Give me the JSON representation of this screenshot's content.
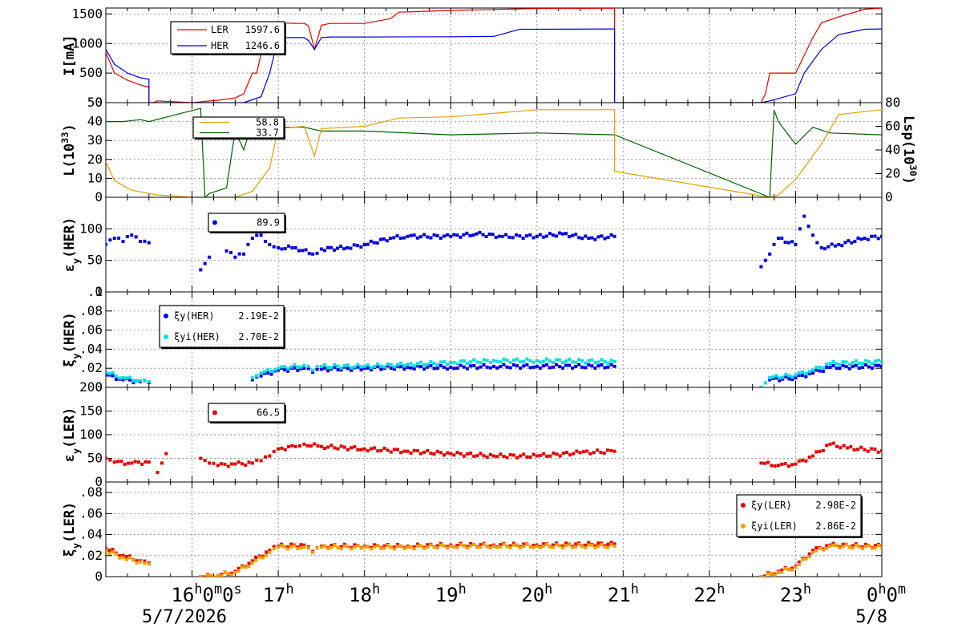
{
  "time_axis": {
    "labels": [
      {
        "h": 16,
        "text": "16",
        "sup": "h",
        "extra": "0",
        "extra_sup": "m",
        "extra2": "0",
        "extra2_sup": "s"
      },
      {
        "h": 17,
        "text": "17",
        "sup": "h"
      },
      {
        "h": 18,
        "text": "18",
        "sup": "h"
      },
      {
        "h": 19,
        "text": "19",
        "sup": "h"
      },
      {
        "h": 20,
        "text": "20",
        "sup": "h"
      },
      {
        "h": 21,
        "text": "21",
        "sup": "h"
      },
      {
        "h": 22,
        "text": "22",
        "sup": "h"
      },
      {
        "h": 23,
        "text": "23",
        "sup": "h"
      },
      {
        "h": 24,
        "text": "0",
        "sup": "h",
        "extra": "0",
        "extra_sup": "m"
      }
    ],
    "date_start": "5/7/2026",
    "date_end": "5/8"
  },
  "chart_data": [
    {
      "type": "line",
      "ylabel": "I[mA]",
      "ylim": [
        0,
        1600
      ],
      "yticks": [
        0,
        500,
        1000,
        1500
      ],
      "grid": true,
      "legend": [
        {
          "name": "LER",
          "value": "1597.6",
          "color": "#e00000"
        },
        {
          "name": "HER",
          "value": "1246.6",
          "color": "#0000e0"
        }
      ],
      "series": [
        {
          "name": "LER",
          "color": "#e00000",
          "x": [
            15.0,
            15.1,
            15.25,
            15.4,
            15.48,
            15.5,
            15.5,
            15.55,
            15.6,
            16.0,
            16.3,
            16.5,
            16.6,
            16.7,
            16.75,
            16.85,
            17.0,
            17.2,
            17.3,
            17.35,
            17.42,
            17.5,
            17.6,
            18.0,
            18.3,
            18.4,
            19.0,
            19.5,
            20.0,
            20.9,
            20.9,
            21.5,
            22.0,
            22.6,
            22.65,
            22.7,
            23.0,
            23.05,
            23.2,
            23.3,
            23.5,
            23.8,
            24.0
          ],
          "y": [
            850,
            500,
            380,
            300,
            270,
            270,
            0,
            0,
            30,
            0,
            40,
            80,
            150,
            500,
            500,
            1150,
            1350,
            1340,
            1340,
            1300,
            900,
            1310,
            1340,
            1340,
            1420,
            1530,
            1560,
            1575,
            1590,
            1597,
            0,
            0,
            0,
            0,
            150,
            500,
            500,
            650,
            1100,
            1350,
            1450,
            1580,
            1597
          ]
        },
        {
          "name": "HER",
          "color": "#0000e0",
          "x": [
            15.0,
            15.1,
            15.25,
            15.4,
            15.48,
            15.5,
            15.5,
            16.0,
            16.6,
            16.8,
            16.9,
            17.0,
            17.3,
            17.35,
            17.42,
            17.5,
            17.6,
            18.0,
            19.0,
            19.5,
            19.8,
            20.0,
            20.9,
            20.9,
            22.0,
            22.6,
            22.7,
            23.0,
            23.1,
            23.3,
            23.5,
            23.8,
            24.0
          ],
          "y": [
            900,
            650,
            500,
            420,
            400,
            400,
            0,
            0,
            0,
            100,
            500,
            1100,
            1100,
            1050,
            900,
            1100,
            1110,
            1110,
            1115,
            1120,
            1240,
            1240,
            1246,
            0,
            0,
            0,
            30,
            150,
            500,
            900,
            1150,
            1240,
            1246
          ]
        }
      ]
    },
    {
      "type": "line",
      "ylabel": "L(10",
      "ylabel_sup": "33",
      "ylabel_end": ")",
      "ylim": [
        0,
        50
      ],
      "yticks": [
        0,
        10,
        20,
        30,
        40,
        50
      ],
      "y2label": "Lsp(10",
      "y2label_sup": "30",
      "y2label_end": ")",
      "y2lim": [
        0,
        80
      ],
      "y2ticks": [
        0,
        20,
        40,
        60,
        80
      ],
      "grid": true,
      "legend": [
        {
          "name": "",
          "value": "58.8",
          "color": "#e0a000"
        },
        {
          "name": "",
          "value": "33.7",
          "color": "#006000"
        }
      ],
      "series": [
        {
          "name": "L",
          "color": "#006000",
          "x": [
            15.0,
            15.2,
            15.4,
            15.5,
            16.1,
            16.15,
            16.2,
            16.4,
            16.5,
            16.6,
            16.7,
            16.8,
            16.9,
            17.0,
            17.3,
            17.5,
            18.0,
            19.0,
            20.0,
            20.9,
            22.7,
            22.75,
            22.8,
            23.0,
            23.2,
            23.4,
            24.0
          ],
          "y": [
            40,
            40,
            41,
            40,
            47,
            0,
            2,
            5,
            35,
            25,
            40,
            42,
            38,
            37,
            37,
            35,
            35,
            33,
            34,
            33,
            0,
            46,
            40,
            28,
            37,
            34,
            33
          ]
        },
        {
          "name": "Lsp",
          "color": "#e0a000",
          "axis": "y2",
          "x": [
            15.0,
            15.1,
            15.3,
            15.6,
            16.0,
            16.5,
            16.7,
            16.9,
            17.0,
            17.3,
            17.42,
            17.5,
            18.0,
            18.4,
            19.0,
            20.0,
            20.9,
            20.9,
            22.7,
            22.8,
            23.0,
            23.3,
            23.5,
            24.0
          ],
          "y": [
            30,
            14,
            6,
            2,
            0,
            0,
            5,
            25,
            58,
            60,
            35,
            58,
            60,
            67,
            68,
            74,
            74,
            22,
            0,
            2,
            15,
            45,
            70,
            74
          ]
        }
      ]
    },
    {
      "type": "scatter",
      "ylabel": "ε",
      "ylabel_sub": "y",
      "ylabel_end": "(HER)",
      "ylim": [
        0,
        150
      ],
      "yticks": [
        0,
        50,
        100
      ],
      "grid": true,
      "legend": [
        {
          "name": "",
          "value": "89.9",
          "color": "#0000e0"
        }
      ],
      "series": [
        {
          "name": "εy(HER)",
          "color": "#0000e0",
          "segments": [
            {
              "x": [
                15.0,
                15.1,
                15.2,
                15.3,
                15.4,
                15.5
              ],
              "y": [
                75,
                85,
                80,
                90,
                80,
                78
              ]
            },
            {
              "x": [
                16.1,
                16.15,
                16.2
              ],
              "y": [
                35,
                45,
                55
              ]
            },
            {
              "x": [
                16.4,
                16.5,
                16.6,
                16.7,
                16.8,
                16.85,
                16.9,
                17.0,
                17.2,
                17.4,
                17.5,
                17.8,
                18.0,
                18.3,
                18.5,
                19.0,
                19.3,
                19.6,
                20.0,
                20.3,
                20.6,
                20.9
              ],
              "y": [
                65,
                55,
                60,
                85,
                90,
                80,
                75,
                70,
                70,
                60,
                68,
                70,
                75,
                85,
                88,
                88,
                92,
                88,
                88,
                92,
                85,
                88
              ]
            },
            {
              "x": [
                22.6,
                22.65,
                22.7,
                22.8,
                23.0,
                23.05,
                23.1,
                23.2,
                23.3,
                23.5,
                23.8,
                24.0
              ],
              "y": [
                40,
                50,
                60,
                85,
                75,
                100,
                120,
                90,
                70,
                75,
                85,
                88
              ]
            }
          ]
        }
      ]
    },
    {
      "type": "scatter",
      "ylabel": "ξ",
      "ylabel_sub": "y",
      "ylabel_end": "(HER)",
      "ylim": [
        0,
        0.1
      ],
      "yticks": [
        0,
        0.02,
        0.04,
        0.06,
        0.08,
        0.1
      ],
      "grid": true,
      "legend": [
        {
          "name": "ξy(HER)",
          "value": "2.19E-2",
          "color": "#0000e0"
        },
        {
          "name": "ξyi(HER)",
          "value": "2.70E-2",
          "color": "#00e0e0"
        }
      ],
      "series": [
        {
          "name": "ξy(HER)",
          "color": "#0000e0",
          "segments": [
            {
              "x": [
                15.0,
                15.2,
                15.4,
                15.5
              ],
              "y": [
                0.013,
                0.008,
                0.006,
                0.005
              ]
            },
            {
              "x": [
                16.7,
                16.8,
                17.0,
                17.3,
                17.4,
                17.5,
                18.0,
                18.5,
                19.0,
                19.5,
                20.0,
                20.9
              ],
              "y": [
                0.008,
                0.012,
                0.018,
                0.02,
                0.016,
                0.019,
                0.02,
                0.021,
                0.021,
                0.022,
                0.022,
                0.022
              ]
            },
            {
              "x": [
                22.7,
                23.0,
                23.2,
                23.4,
                24.0
              ],
              "y": [
                0.008,
                0.01,
                0.015,
                0.021,
                0.022
              ]
            }
          ]
        },
        {
          "name": "ξyi(HER)",
          "color": "#00e0e0",
          "segments": [
            {
              "x": [
                15.0,
                15.2,
                15.4,
                15.5
              ],
              "y": [
                0.016,
                0.01,
                0.007,
                0.006
              ]
            },
            {
              "x": [
                16.7,
                16.8,
                17.0,
                17.3,
                17.4,
                17.5,
                18.0,
                18.5,
                19.0,
                19.5,
                20.0,
                20.9
              ],
              "y": [
                0.01,
                0.015,
                0.02,
                0.023,
                0.018,
                0.022,
                0.022,
                0.024,
                0.026,
                0.028,
                0.028,
                0.027
              ]
            },
            {
              "x": [
                22.6,
                22.7,
                23.0,
                23.2,
                23.4,
                24.0
              ],
              "y": [
                0.0,
                0.01,
                0.013,
                0.018,
                0.025,
                0.027
              ]
            }
          ]
        }
      ]
    },
    {
      "type": "scatter",
      "ylabel": "ε",
      "ylabel_sub": "y",
      "ylabel_end": "(LER)",
      "ylim": [
        0,
        200
      ],
      "yticks": [
        0,
        50,
        100,
        150,
        200
      ],
      "grid": true,
      "legend": [
        {
          "name": "",
          "value": "66.5",
          "color": "#e00000"
        }
      ],
      "series": [
        {
          "name": "εy(LER)",
          "color": "#e00000",
          "segments": [
            {
              "x": [
                15.0,
                15.1,
                15.3,
                15.5
              ],
              "y": [
                50,
                42,
                40,
                42
              ]
            },
            {
              "x": [
                15.6,
                15.65,
                15.7
              ],
              "y": [
                20,
                40,
                60
              ]
            },
            {
              "x": [
                16.1,
                16.2,
                16.3,
                16.5,
                16.7,
                16.8,
                16.9,
                17.0,
                17.2,
                17.3,
                17.5,
                18.0,
                18.5,
                19.0,
                19.5,
                20.0,
                20.5,
                20.9
              ],
              "y": [
                50,
                40,
                35,
                38,
                40,
                45,
                55,
                70,
                75,
                80,
                75,
                70,
                65,
                60,
                55,
                55,
                62,
                65
              ]
            },
            {
              "x": [
                22.6,
                22.8,
                23.0,
                23.2,
                23.4,
                23.6,
                24.0
              ],
              "y": [
                40,
                35,
                38,
                55,
                80,
                72,
                66
              ]
            }
          ]
        }
      ]
    },
    {
      "type": "scatter",
      "ylabel": "ξ",
      "ylabel_sub": "y",
      "ylabel_end": "(LER)",
      "ylim": [
        0,
        0.09
      ],
      "yticks": [
        0,
        0.02,
        0.04,
        0.06,
        0.08
      ],
      "grid": true,
      "legend": [
        {
          "name": "ξy(LER)",
          "value": "2.98E-2",
          "color": "#e00000"
        },
        {
          "name": "ξyi(LER)",
          "value": "2.86E-2",
          "color": "#f0a000"
        }
      ],
      "series": [
        {
          "name": "ξy(LER)",
          "color": "#e00000",
          "segments": [
            {
              "x": [
                15.0,
                15.2,
                15.4,
                15.5
              ],
              "y": [
                0.027,
                0.02,
                0.015,
                0.013
              ]
            },
            {
              "x": [
                16.1,
                16.3,
                16.5,
                16.7,
                16.9,
                17.0,
                17.3,
                17.4,
                17.5,
                18.0,
                18.5,
                19.0,
                19.5,
                20.0,
                20.9
              ],
              "y": [
                0.0,
                0.001,
                0.005,
                0.015,
                0.025,
                0.029,
                0.03,
                0.024,
                0.029,
                0.029,
                0.029,
                0.03,
                0.03,
                0.03,
                0.031
              ]
            },
            {
              "x": [
                22.6,
                22.8,
                23.0,
                23.2,
                23.4,
                24.0
              ],
              "y": [
                0.0,
                0.005,
                0.01,
                0.025,
                0.03,
                0.029
              ]
            }
          ]
        },
        {
          "name": "ξyi(LER)",
          "color": "#f0a000",
          "segments": [
            {
              "x": [
                15.0,
                15.2,
                15.4,
                15.5
              ],
              "y": [
                0.025,
                0.018,
                0.014,
                0.012
              ]
            },
            {
              "x": [
                16.1,
                16.3,
                16.5,
                16.7,
                16.9,
                17.0,
                17.3,
                17.4,
                17.5,
                18.0,
                18.5,
                19.0,
                19.5,
                20.0,
                20.9
              ],
              "y": [
                0.0,
                0.001,
                0.004,
                0.013,
                0.023,
                0.028,
                0.028,
                0.023,
                0.028,
                0.028,
                0.028,
                0.029,
                0.029,
                0.029,
                0.029
              ]
            },
            {
              "x": [
                22.6,
                22.8,
                23.0,
                23.2,
                23.4,
                24.0
              ],
              "y": [
                0.0,
                0.004,
                0.009,
                0.023,
                0.029,
                0.028
              ]
            }
          ]
        }
      ]
    }
  ]
}
